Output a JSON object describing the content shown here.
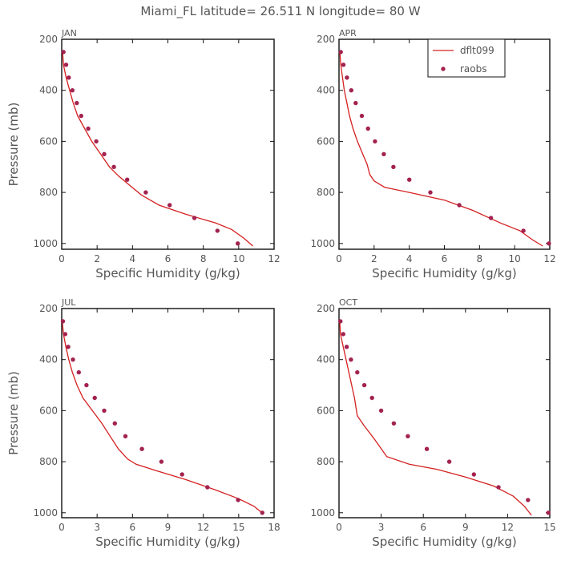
{
  "figure": {
    "title": "Miami_FL   latitude= 26.511 N longitude= 80 W",
    "legend": {
      "model_label": "dflt099",
      "obs_label": "raobs",
      "model_color": "#d42020",
      "obs_color": "#a3224f"
    }
  },
  "chart_data": [
    {
      "type": "line",
      "panel_label": "JAN",
      "xlabel": "Specific Humidity (g/kg)",
      "ylabel": "Pressure (mb)",
      "xlim": [
        0,
        12
      ],
      "ylim": [
        200,
        1025
      ],
      "y_inverted": true,
      "xticks": [
        0,
        2,
        4,
        6,
        8,
        10,
        12
      ],
      "yticks": [
        200,
        400,
        600,
        800,
        1000
      ],
      "series": [
        {
          "name": "dflt099",
          "kind": "line",
          "points": [
            [
              0.05,
              250
            ],
            [
              0.1,
              300
            ],
            [
              0.25,
              350
            ],
            [
              0.45,
              400
            ],
            [
              0.65,
              450
            ],
            [
              0.9,
              500
            ],
            [
              1.3,
              550
            ],
            [
              1.7,
              600
            ],
            [
              2.2,
              650
            ],
            [
              2.7,
              700
            ],
            [
              3.2,
              735
            ],
            [
              3.8,
              770
            ],
            [
              4.5,
              810
            ],
            [
              5.5,
              850
            ],
            [
              7.0,
              885
            ],
            [
              8.7,
              920
            ],
            [
              9.6,
              945
            ],
            [
              10.3,
              980
            ],
            [
              10.8,
              1010
            ]
          ]
        },
        {
          "name": "raobs",
          "kind": "points",
          "points": [
            [
              0.1,
              250
            ],
            [
              0.25,
              300
            ],
            [
              0.4,
              350
            ],
            [
              0.6,
              400
            ],
            [
              0.85,
              450
            ],
            [
              1.1,
              500
            ],
            [
              1.5,
              550
            ],
            [
              1.95,
              600
            ],
            [
              2.4,
              650
            ],
            [
              2.95,
              700
            ],
            [
              3.7,
              750
            ],
            [
              4.75,
              800
            ],
            [
              6.1,
              850
            ],
            [
              7.5,
              900
            ],
            [
              8.8,
              950
            ],
            [
              9.95,
              1000
            ]
          ]
        }
      ]
    },
    {
      "type": "line",
      "panel_label": "APR",
      "xlabel": "Specific Humidity (g/kg)",
      "ylabel": "",
      "xlim": [
        0,
        12
      ],
      "ylim": [
        200,
        1025
      ],
      "y_inverted": true,
      "xticks": [
        0,
        2,
        4,
        6,
        8,
        10,
        12
      ],
      "yticks": [
        200,
        400,
        600,
        800,
        1000
      ],
      "series": [
        {
          "name": "dflt099",
          "kind": "line",
          "points": [
            [
              0.05,
              250
            ],
            [
              0.1,
              300
            ],
            [
              0.2,
              350
            ],
            [
              0.3,
              400
            ],
            [
              0.45,
              450
            ],
            [
              0.6,
              500
            ],
            [
              0.8,
              550
            ],
            [
              1.05,
              600
            ],
            [
              1.35,
              650
            ],
            [
              1.6,
              690
            ],
            [
              1.75,
              730
            ],
            [
              2.0,
              755
            ],
            [
              2.6,
              780
            ],
            [
              4.0,
              800
            ],
            [
              6.0,
              830
            ],
            [
              7.6,
              870
            ],
            [
              9.2,
              920
            ],
            [
              10.3,
              950
            ],
            [
              11.0,
              985
            ],
            [
              11.6,
              1010
            ]
          ]
        },
        {
          "name": "raobs",
          "kind": "points",
          "points": [
            [
              0.1,
              250
            ],
            [
              0.25,
              300
            ],
            [
              0.45,
              350
            ],
            [
              0.7,
              400
            ],
            [
              0.95,
              450
            ],
            [
              1.3,
              500
            ],
            [
              1.65,
              550
            ],
            [
              2.05,
              600
            ],
            [
              2.55,
              650
            ],
            [
              3.1,
              700
            ],
            [
              4.0,
              750
            ],
            [
              5.2,
              800
            ],
            [
              6.85,
              850
            ],
            [
              8.65,
              900
            ],
            [
              10.5,
              950
            ],
            [
              11.95,
              1000
            ]
          ]
        }
      ]
    },
    {
      "type": "line",
      "panel_label": "JUL",
      "xlabel": "Specific Humidity (g/kg)",
      "ylabel": "Pressure (mb)",
      "xlim": [
        0,
        18
      ],
      "ylim": [
        200,
        1025
      ],
      "y_inverted": true,
      "xticks": [
        0,
        3,
        6,
        9,
        12,
        15,
        18
      ],
      "yticks": [
        200,
        400,
        600,
        800,
        1000
      ],
      "series": [
        {
          "name": "dflt099",
          "kind": "line",
          "points": [
            [
              0.05,
              250
            ],
            [
              0.15,
              300
            ],
            [
              0.35,
              350
            ],
            [
              0.6,
              400
            ],
            [
              0.9,
              450
            ],
            [
              1.3,
              500
            ],
            [
              1.8,
              550
            ],
            [
              2.6,
              600
            ],
            [
              3.4,
              650
            ],
            [
              4.1,
              700
            ],
            [
              4.8,
              750
            ],
            [
              5.6,
              790
            ],
            [
              6.3,
              810
            ],
            [
              8.0,
              835
            ],
            [
              10.5,
              870
            ],
            [
              13.0,
              910
            ],
            [
              15.0,
              945
            ],
            [
              16.3,
              975
            ],
            [
              17.1,
              1005
            ]
          ]
        },
        {
          "name": "raobs",
          "kind": "points",
          "points": [
            [
              0.1,
              250
            ],
            [
              0.3,
              300
            ],
            [
              0.55,
              350
            ],
            [
              0.95,
              400
            ],
            [
              1.45,
              450
            ],
            [
              2.1,
              500
            ],
            [
              2.8,
              550
            ],
            [
              3.6,
              600
            ],
            [
              4.5,
              650
            ],
            [
              5.4,
              700
            ],
            [
              6.8,
              750
            ],
            [
              8.45,
              800
            ],
            [
              10.2,
              850
            ],
            [
              12.35,
              900
            ],
            [
              14.95,
              950
            ],
            [
              17.0,
              1000
            ]
          ]
        }
      ]
    },
    {
      "type": "line",
      "panel_label": "OCT",
      "xlabel": "Specific Humidity (g/kg)",
      "ylabel": "",
      "xlim": [
        0,
        15
      ],
      "ylim": [
        200,
        1025
      ],
      "y_inverted": true,
      "xticks": [
        0,
        3,
        6,
        9,
        12,
        15
      ],
      "yticks": [
        200,
        400,
        600,
        800,
        1000
      ],
      "series": [
        {
          "name": "dflt099",
          "kind": "line",
          "points": [
            [
              0.05,
              250
            ],
            [
              0.1,
              300
            ],
            [
              0.3,
              350
            ],
            [
              0.5,
              400
            ],
            [
              0.7,
              450
            ],
            [
              0.9,
              500
            ],
            [
              1.1,
              550
            ],
            [
              1.3,
              620
            ],
            [
              1.8,
              660
            ],
            [
              2.5,
              710
            ],
            [
              3.4,
              780
            ],
            [
              5.0,
              810
            ],
            [
              7.0,
              830
            ],
            [
              9.0,
              860
            ],
            [
              11.0,
              895
            ],
            [
              12.4,
              935
            ],
            [
              13.2,
              975
            ],
            [
              13.7,
              1010
            ]
          ]
        },
        {
          "name": "raobs",
          "kind": "points",
          "points": [
            [
              0.1,
              250
            ],
            [
              0.3,
              300
            ],
            [
              0.55,
              350
            ],
            [
              0.85,
              400
            ],
            [
              1.3,
              450
            ],
            [
              1.8,
              500
            ],
            [
              2.35,
              550
            ],
            [
              3.0,
              600
            ],
            [
              3.9,
              650
            ],
            [
              4.9,
              700
            ],
            [
              6.25,
              750
            ],
            [
              7.85,
              800
            ],
            [
              9.6,
              850
            ],
            [
              11.35,
              900
            ],
            [
              13.45,
              950
            ],
            [
              14.9,
              1000
            ]
          ]
        }
      ]
    }
  ]
}
